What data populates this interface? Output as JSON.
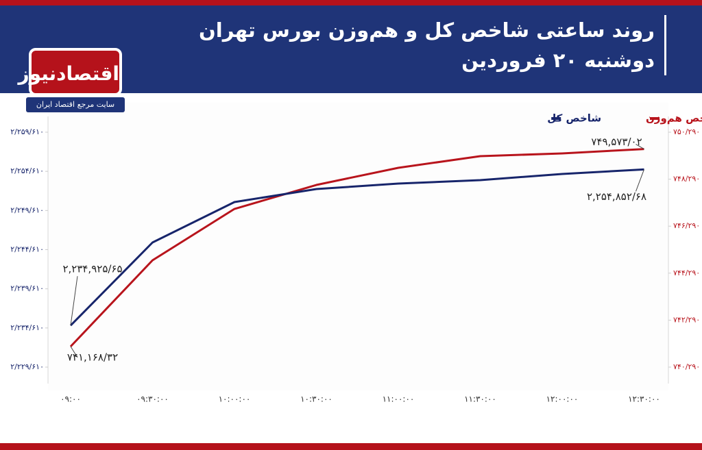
{
  "brand": {
    "name": "اقتصادنیوز",
    "tagline": "سایت مرجع اقتصاد ایران"
  },
  "chart_data": {
    "type": "line",
    "title": "روند ساعتی شاخص کل و هم‌وزن بورس تهران",
    "subtitle": "دوشنبه ۲۰ فروردین",
    "categories": [
      "۰۹:۰۰",
      "۰۹:۳۰:۰۰",
      "۱۰:۰۰:۰۰",
      "۱۰:۳۰:۰۰",
      "۱۱:۰۰:۰۰",
      "۱۱:۳۰:۰۰",
      "۱۲:۰۰:۰۰",
      "۱۲:۳۰:۰۰"
    ],
    "series": [
      {
        "name": "شاخص هم‌وزن",
        "color": "#b8141c",
        "axis": "y2",
        "values": [
          741168.32,
          744838,
          747024,
          748045,
          748774,
          749270,
          749386,
          749573.02
        ],
        "value_labels": [
          "۷۴۱,۱۶۸/۳۲",
          null,
          null,
          null,
          null,
          null,
          null,
          "۷۴۹,۵۷۳/۰۲"
        ]
      },
      {
        "name": "شاخص کل",
        "color": "#17256b",
        "values": [
          2234925.65,
          2245528,
          2250689,
          2252350,
          2253050,
          2253488,
          2254275,
          2254852.68
        ],
        "value_labels": [
          "۲,۲۳۴,۹۲۵/۶۵",
          null,
          null,
          null,
          null,
          null,
          null,
          "۲,۲۵۴,۸۵۲/۶۸"
        ]
      }
    ],
    "ylim": [
      2229610,
      2259610
    ],
    "yticks": [
      {
        "value": 2229610,
        "label": "۲/۲۲۹/۶۱۰"
      },
      {
        "value": 2234610,
        "label": "۲/۲۳۴/۶۱۰"
      },
      {
        "value": 2239610,
        "label": "۲/۲۳۹/۶۱۰"
      },
      {
        "value": 2244610,
        "label": "۲/۲۴۴/۶۱۰"
      },
      {
        "value": 2249610,
        "label": "۲/۲۴۹/۶۱۰"
      },
      {
        "value": 2254610,
        "label": "۲/۲۵۴/۶۱۰"
      },
      {
        "value": 2259610,
        "label": "۲/۲۵۹/۶۱۰"
      }
    ],
    "y2lim": [
      740290,
      750290
    ],
    "y2ticks": [
      {
        "value": 740290,
        "label": "۷۴۰/۲۹۰"
      },
      {
        "value": 742290,
        "label": "۷۴۲/۲۹۰"
      },
      {
        "value": 744290,
        "label": "۷۴۴/۲۹۰"
      },
      {
        "value": 746290,
        "label": "۷۴۶/۲۹۰"
      },
      {
        "value": 748290,
        "label": "۷۴۸/۲۹۰"
      },
      {
        "value": 750290,
        "label": "۷۵۰/۲۹۰"
      }
    ],
    "grid": false,
    "legend": "top-right"
  }
}
